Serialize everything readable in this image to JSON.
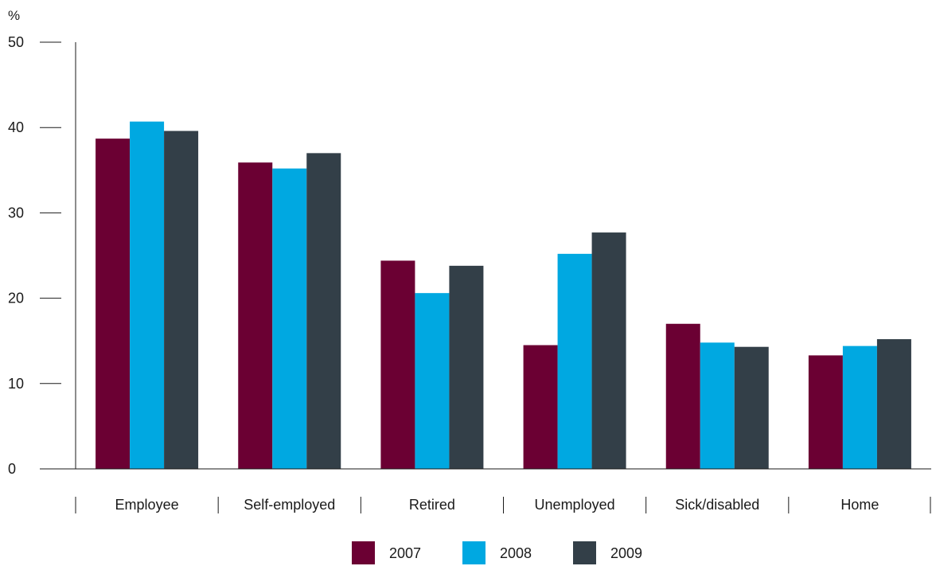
{
  "chart_data": {
    "type": "bar",
    "y_unit": "%",
    "categories": [
      "Employee",
      "Self-employed",
      "Retired",
      "Unemployed",
      "Sick/disabled",
      "Home"
    ],
    "series": [
      {
        "name": "2007",
        "color": "#6b0033",
        "values": [
          38.7,
          35.9,
          24.4,
          14.5,
          17.0,
          13.3
        ]
      },
      {
        "name": "2008",
        "color": "#00a8e1",
        "values": [
          40.7,
          35.2,
          20.6,
          25.2,
          14.8,
          14.4
        ]
      },
      {
        "name": "2009",
        "color": "#333f48",
        "values": [
          39.6,
          37.0,
          23.8,
          27.7,
          14.3,
          15.2
        ]
      }
    ],
    "y_ticks": [
      0,
      10,
      20,
      30,
      40,
      50
    ],
    "ylim": [
      0,
      50
    ],
    "grid": false,
    "legend_position": "bottom-center"
  }
}
